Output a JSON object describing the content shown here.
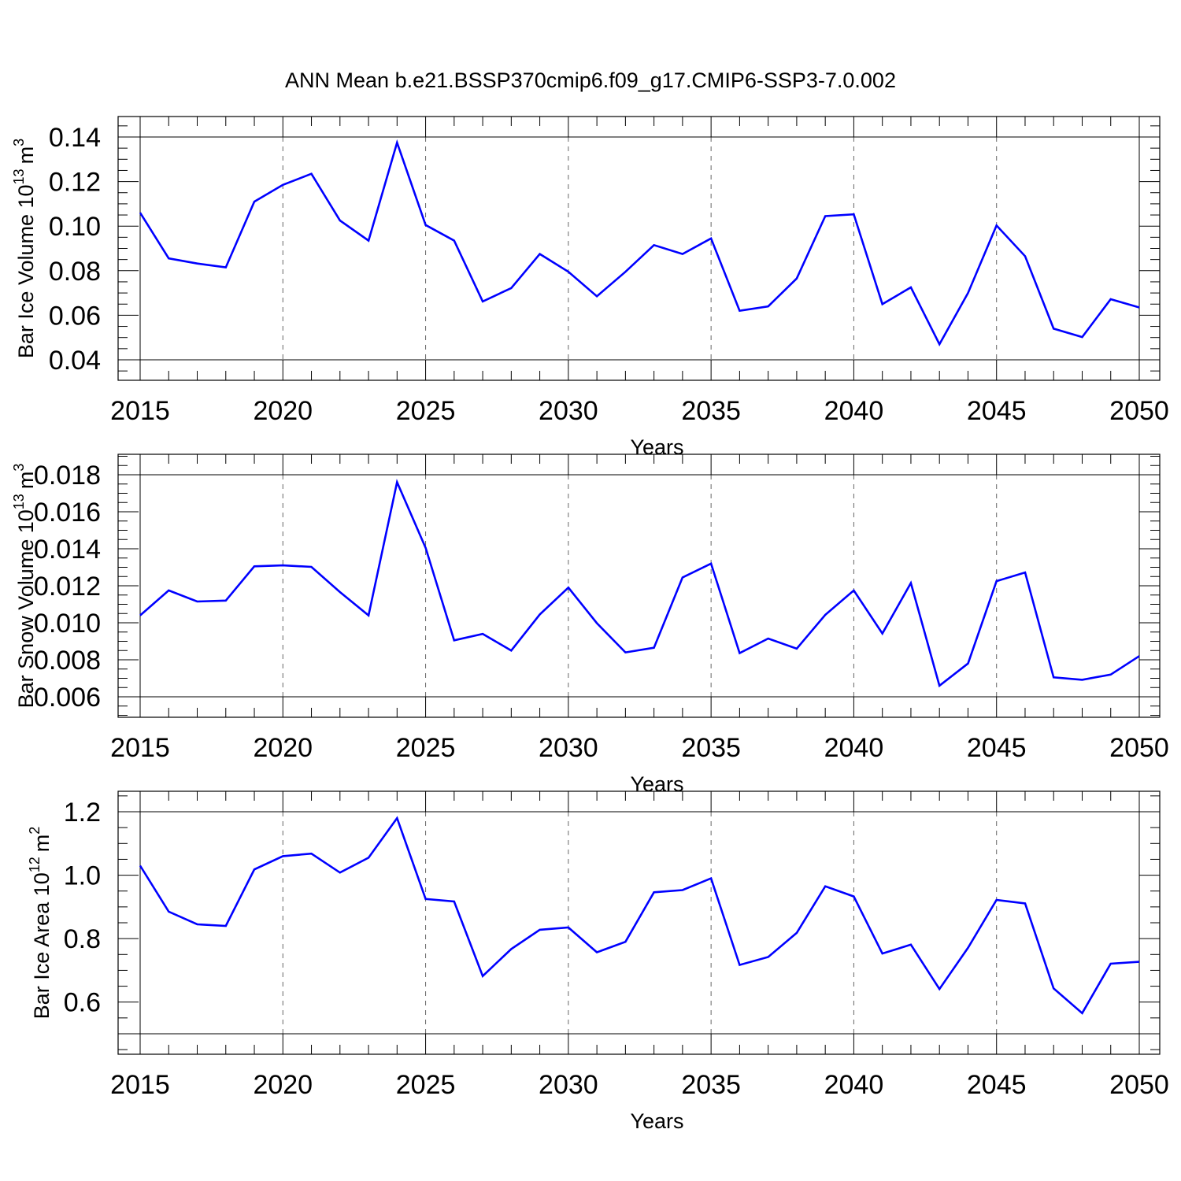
{
  "title": "ANN Mean b.e21.BSSP370cmip6.f09_g17.CMIP6-SSP3-7.0.002",
  "colors": {
    "line": "#0000ff",
    "axis": "#000000",
    "grid": "#666666"
  },
  "chart_data": [
    {
      "type": "line",
      "ylabel": "Bar Ice Volume 10",
      "ylabel_exp": "13",
      "ylabel_unit": "m",
      "ylabel_unit_exp": "3",
      "xlabel": "Years",
      "xlim": [
        2015,
        2050
      ],
      "ylim": [
        0.04,
        0.14
      ],
      "xticks": [
        2015,
        2020,
        2025,
        2030,
        2035,
        2040,
        2045,
        2050
      ],
      "yticks": [
        0.04,
        0.06,
        0.08,
        0.1,
        0.12,
        0.14
      ],
      "yticklabels": [
        "0.04",
        "0.06",
        "0.08",
        "0.10",
        "0.12",
        "0.14"
      ],
      "grid_x": true,
      "x": [
        2015,
        2016,
        2017,
        2018,
        2019,
        2020,
        2021,
        2022,
        2023,
        2024,
        2025,
        2026,
        2027,
        2028,
        2029,
        2030,
        2031,
        2032,
        2033,
        2034,
        2035,
        2036,
        2037,
        2038,
        2039,
        2040,
        2041,
        2042,
        2043,
        2044,
        2045,
        2046,
        2047,
        2048,
        2049,
        2050
      ],
      "values": [
        0.106,
        0.0855,
        0.0832,
        0.0815,
        0.111,
        0.1185,
        0.1235,
        0.1025,
        0.0935,
        0.1375,
        0.1005,
        0.0935,
        0.0662,
        0.0722,
        0.0875,
        0.0795,
        0.0685,
        0.0795,
        0.0915,
        0.0875,
        0.0945,
        0.062,
        0.064,
        0.0765,
        0.1045,
        0.1053,
        0.065,
        0.0725,
        0.047,
        0.07,
        0.1003,
        0.0865,
        0.054,
        0.0502,
        0.0672,
        0.0635
      ]
    },
    {
      "type": "line",
      "ylabel": "Bar Snow Volume 10",
      "ylabel_exp": "13",
      "ylabel_unit": "m",
      "ylabel_unit_exp": "3",
      "xlabel": "Years",
      "xlim": [
        2015,
        2050
      ],
      "ylim": [
        0.006,
        0.018
      ],
      "xticks": [
        2015,
        2020,
        2025,
        2030,
        2035,
        2040,
        2045,
        2050
      ],
      "yticks": [
        0.006,
        0.008,
        0.01,
        0.012,
        0.014,
        0.016,
        0.018
      ],
      "yticklabels": [
        "0.006",
        "0.008",
        "0.010",
        "0.012",
        "0.014",
        "0.016",
        "0.018"
      ],
      "grid_x": true,
      "x": [
        2015,
        2016,
        2017,
        2018,
        2019,
        2020,
        2021,
        2022,
        2023,
        2024,
        2025,
        2026,
        2027,
        2028,
        2029,
        2030,
        2031,
        2032,
        2033,
        2034,
        2035,
        2036,
        2037,
        2038,
        2039,
        2040,
        2041,
        2042,
        2043,
        2044,
        2045,
        2046,
        2047,
        2048,
        2049,
        2050
      ],
      "values": [
        0.0104,
        0.01175,
        0.01115,
        0.0112,
        0.01305,
        0.0131,
        0.01302,
        0.01166,
        0.0104,
        0.0176,
        0.01405,
        0.00905,
        0.0094,
        0.0085,
        0.01045,
        0.0119,
        0.00998,
        0.0084,
        0.00865,
        0.01245,
        0.0132,
        0.00836,
        0.00915,
        0.0086,
        0.01043,
        0.01175,
        0.00942,
        0.01215,
        0.0066,
        0.0078,
        0.01225,
        0.01272,
        0.00705,
        0.00692,
        0.0072,
        0.0082
      ]
    },
    {
      "type": "line",
      "ylabel": "Bar Ice Area 10",
      "ylabel_exp": "12",
      "ylabel_unit": "m",
      "ylabel_unit_exp": "2",
      "xlabel": "Years",
      "xlim": [
        2015,
        2050
      ],
      "ylim": [
        0.5,
        1.2
      ],
      "xticks": [
        2015,
        2020,
        2025,
        2030,
        2035,
        2040,
        2045,
        2050
      ],
      "yticks": [
        0.6,
        0.8,
        1.0,
        1.2
      ],
      "yticklabels": [
        "0.6",
        "0.8",
        "1.0",
        "1.2"
      ],
      "grid_x": true,
      "x": [
        2015,
        2016,
        2017,
        2018,
        2019,
        2020,
        2021,
        2022,
        2023,
        2024,
        2025,
        2026,
        2027,
        2028,
        2029,
        2030,
        2031,
        2032,
        2033,
        2034,
        2035,
        2036,
        2037,
        2038,
        2039,
        2040,
        2041,
        2042,
        2043,
        2044,
        2045,
        2046,
        2047,
        2048,
        2049,
        2050
      ],
      "values": [
        1.03,
        0.885,
        0.845,
        0.84,
        1.018,
        1.06,
        1.068,
        1.008,
        1.055,
        1.18,
        0.925,
        0.917,
        0.682,
        0.767,
        0.828,
        0.835,
        0.757,
        0.79,
        0.946,
        0.953,
        0.99,
        0.717,
        0.742,
        0.818,
        0.965,
        0.933,
        0.753,
        0.781,
        0.641,
        0.771,
        0.922,
        0.911,
        0.643,
        0.565,
        0.721,
        0.727
      ]
    }
  ]
}
